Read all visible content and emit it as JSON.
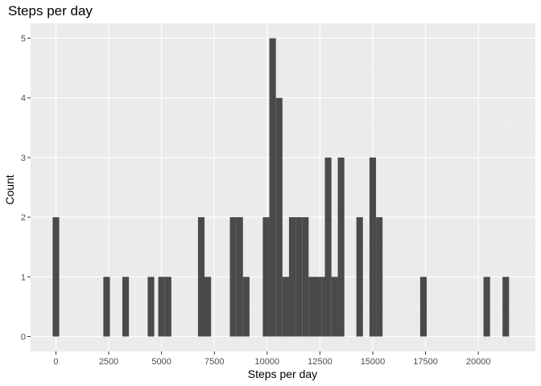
{
  "chart_data": {
    "type": "bar",
    "title": "Steps per day",
    "xlabel": "Steps per day",
    "ylabel": "Count",
    "xlim": [
      -1200,
      22700
    ],
    "ylim": [
      -0.25,
      5.25
    ],
    "x_ticks": [
      0,
      2500,
      5000,
      7500,
      10000,
      12500,
      15000,
      17500,
      20000
    ],
    "y_ticks": [
      0,
      1,
      2,
      3,
      4,
      5
    ],
    "bin_width": 310,
    "bins": [
      {
        "x": 0,
        "count": 2
      },
      {
        "x": 2400,
        "count": 1
      },
      {
        "x": 3300,
        "count": 1
      },
      {
        "x": 4500,
        "count": 1
      },
      {
        "x": 5000,
        "count": 1
      },
      {
        "x": 5310,
        "count": 1
      },
      {
        "x": 6880,
        "count": 2
      },
      {
        "x": 7190,
        "count": 1
      },
      {
        "x": 8390,
        "count": 2
      },
      {
        "x": 8700,
        "count": 2
      },
      {
        "x": 9010,
        "count": 1
      },
      {
        "x": 9950,
        "count": 2
      },
      {
        "x": 10260,
        "count": 5
      },
      {
        "x": 10570,
        "count": 4
      },
      {
        "x": 10880,
        "count": 1
      },
      {
        "x": 11190,
        "count": 2
      },
      {
        "x": 11500,
        "count": 2
      },
      {
        "x": 11810,
        "count": 2
      },
      {
        "x": 12120,
        "count": 1
      },
      {
        "x": 12430,
        "count": 1
      },
      {
        "x": 12740,
        "count": 1
      },
      {
        "x": 12890,
        "count": 3
      },
      {
        "x": 13200,
        "count": 1
      },
      {
        "x": 13500,
        "count": 3
      },
      {
        "x": 14380,
        "count": 2
      },
      {
        "x": 15000,
        "count": 3
      },
      {
        "x": 15310,
        "count": 2
      },
      {
        "x": 17400,
        "count": 1
      },
      {
        "x": 20400,
        "count": 1
      },
      {
        "x": 21300,
        "count": 1
      }
    ],
    "colors": {
      "panel_background": "#ebebeb",
      "bar_fill": "#4a4a4a",
      "grid": "#ffffff"
    },
    "grid": true,
    "legend": "none"
  }
}
